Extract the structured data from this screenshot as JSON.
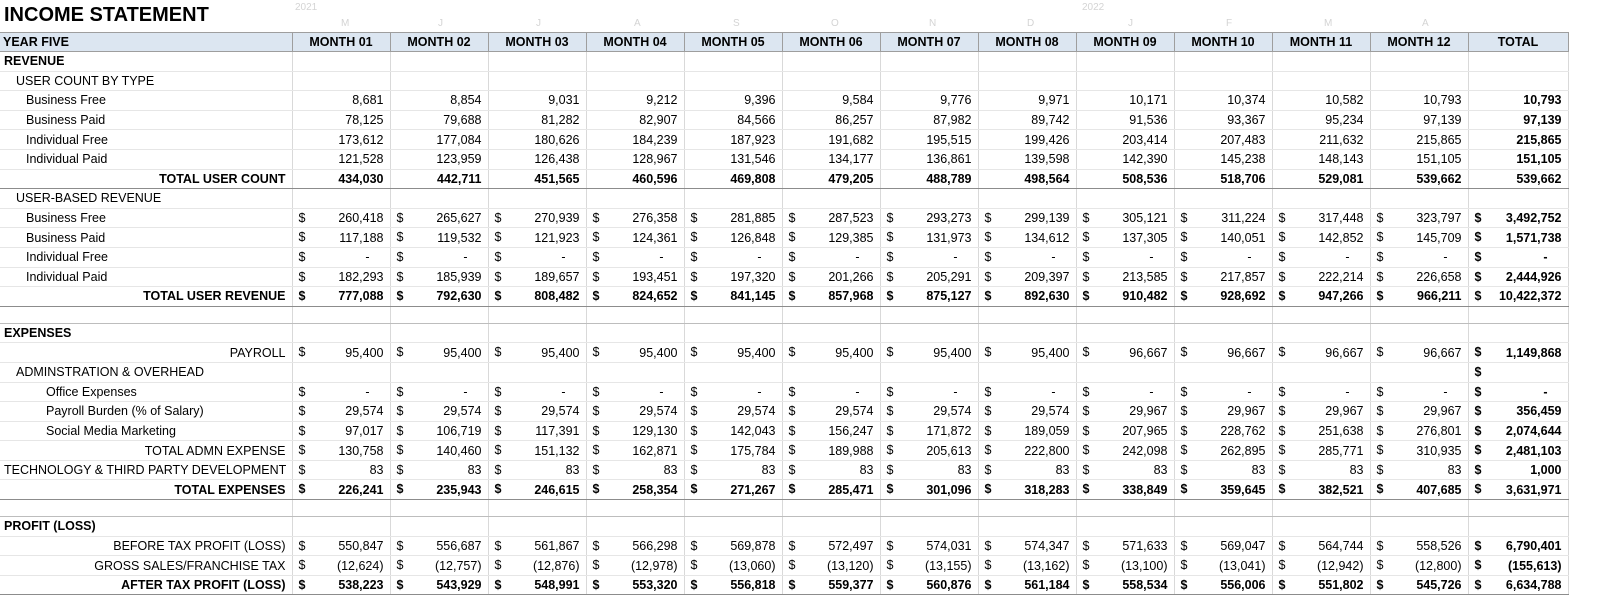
{
  "title": "INCOME STATEMENT",
  "ghost": {
    "y1": "2021",
    "y2": "2022",
    "months": [
      "M",
      "J",
      "J",
      "A",
      "S",
      "O",
      "N",
      "D",
      "J",
      "F",
      "M",
      "A"
    ]
  },
  "header": {
    "label": "YEAR FIVE",
    "months": [
      "MONTH 01",
      "MONTH 02",
      "MONTH 03",
      "MONTH 04",
      "MONTH 05",
      "MONTH 06",
      "MONTH 07",
      "MONTH 08",
      "MONTH 09",
      "MONTH 10",
      "MONTH 11",
      "MONTH 12"
    ],
    "total": "TOTAL"
  },
  "rows": [
    {
      "label": "REVENUE",
      "style": "sec"
    },
    {
      "label": "USER COUNT BY TYPE",
      "style": "i1"
    },
    {
      "label": "Business Free",
      "style": "i2",
      "values": [
        "8,681",
        "8,854",
        "9,031",
        "9,212",
        "9,396",
        "9,584",
        "9,776",
        "9,971",
        "10,171",
        "10,374",
        "10,582",
        "10,793"
      ],
      "total": "10,793"
    },
    {
      "label": "Business Paid",
      "style": "i2",
      "values": [
        "78,125",
        "79,688",
        "81,282",
        "82,907",
        "84,566",
        "86,257",
        "87,982",
        "89,742",
        "91,536",
        "93,367",
        "95,234",
        "97,139"
      ],
      "total": "97,139"
    },
    {
      "label": "Individual Free",
      "style": "i2",
      "values": [
        "173,612",
        "177,084",
        "180,626",
        "184,239",
        "187,923",
        "191,682",
        "195,515",
        "199,426",
        "203,414",
        "207,483",
        "211,632",
        "215,865"
      ],
      "total": "215,865"
    },
    {
      "label": "Individual Paid",
      "style": "i2",
      "values": [
        "121,528",
        "123,959",
        "126,438",
        "128,967",
        "131,546",
        "134,177",
        "136,861",
        "139,598",
        "142,390",
        "145,238",
        "148,143",
        "151,105"
      ],
      "total": "151,105"
    },
    {
      "label": "TOTAL USER COUNT",
      "style": "tot",
      "values": [
        "434,030",
        "442,711",
        "451,565",
        "460,596",
        "469,808",
        "479,205",
        "488,789",
        "498,564",
        "508,536",
        "518,706",
        "529,081",
        "539,662"
      ],
      "total": "539,662"
    },
    {
      "label": "USER-BASED REVENUE",
      "style": "i1"
    },
    {
      "label": "Business Free",
      "style": "i2",
      "cur": true,
      "values": [
        "260,418",
        "265,627",
        "270,939",
        "276,358",
        "281,885",
        "287,523",
        "293,273",
        "299,139",
        "305,121",
        "311,224",
        "317,448",
        "323,797"
      ],
      "total": "3,492,752"
    },
    {
      "label": "Business Paid",
      "style": "i2",
      "cur": true,
      "values": [
        "117,188",
        "119,532",
        "121,923",
        "124,361",
        "126,848",
        "129,385",
        "131,973",
        "134,612",
        "137,305",
        "140,051",
        "142,852",
        "145,709"
      ],
      "total": "1,571,738"
    },
    {
      "label": "Individual Free",
      "style": "i2",
      "cur": true,
      "values": [
        "-",
        "-",
        "-",
        "-",
        "-",
        "-",
        "-",
        "-",
        "-",
        "-",
        "-",
        "-"
      ],
      "total": "-"
    },
    {
      "label": "Individual Paid",
      "style": "i2",
      "cur": true,
      "values": [
        "182,293",
        "185,939",
        "189,657",
        "193,451",
        "197,320",
        "201,266",
        "205,291",
        "209,397",
        "213,585",
        "217,857",
        "222,214",
        "226,658"
      ],
      "total": "2,444,926"
    },
    {
      "label": "TOTAL USER REVENUE",
      "style": "tot",
      "cur": true,
      "values": [
        "777,088",
        "792,630",
        "808,482",
        "824,652",
        "841,145",
        "857,968",
        "875,127",
        "892,630",
        "910,482",
        "928,692",
        "947,266",
        "966,211"
      ],
      "total": "10,422,372"
    },
    {
      "label": "",
      "style": "gap"
    },
    {
      "label": "EXPENSES",
      "style": "sec"
    },
    {
      "label": "PAYROLL",
      "style": "right",
      "cur": true,
      "values": [
        "95,400",
        "95,400",
        "95,400",
        "95,400",
        "95,400",
        "95,400",
        "95,400",
        "95,400",
        "96,667",
        "96,667",
        "96,667",
        "96,667"
      ],
      "total": "1,149,868"
    },
    {
      "label": "ADMINSTRATION & OVERHEAD",
      "style": "i1",
      "totalcur": true,
      "total": ""
    },
    {
      "label": "Office Expenses",
      "style": "i3",
      "cur": true,
      "values": [
        "-",
        "-",
        "-",
        "-",
        "-",
        "-",
        "-",
        "-",
        "-",
        "-",
        "-",
        "-"
      ],
      "total": "-"
    },
    {
      "label": "Payroll Burden (% of Salary)",
      "style": "i3",
      "cur": true,
      "values": [
        "29,574",
        "29,574",
        "29,574",
        "29,574",
        "29,574",
        "29,574",
        "29,574",
        "29,574",
        "29,967",
        "29,967",
        "29,967",
        "29,967"
      ],
      "total": "356,459"
    },
    {
      "label": "Social Media Marketing",
      "style": "i3",
      "cur": true,
      "values": [
        "97,017",
        "106,719",
        "117,391",
        "129,130",
        "142,043",
        "156,247",
        "171,872",
        "189,059",
        "207,965",
        "228,762",
        "251,638",
        "276,801"
      ],
      "total": "2,074,644"
    },
    {
      "label": "TOTAL ADMN EXPENSE",
      "style": "subtot",
      "cur": true,
      "values": [
        "130,758",
        "140,460",
        "151,132",
        "162,871",
        "175,784",
        "189,988",
        "205,613",
        "222,800",
        "242,098",
        "262,895",
        "285,771",
        "310,935"
      ],
      "total": "2,481,103"
    },
    {
      "label": "TECHNOLOGY & THIRD PARTY DEVELOPMENT",
      "style": "right",
      "cur": true,
      "values": [
        "83",
        "83",
        "83",
        "83",
        "83",
        "83",
        "83",
        "83",
        "83",
        "83",
        "83",
        "83"
      ],
      "total": "1,000"
    },
    {
      "label": "TOTAL EXPENSES",
      "style": "tot",
      "cur": true,
      "values": [
        "226,241",
        "235,943",
        "246,615",
        "258,354",
        "271,267",
        "285,471",
        "301,096",
        "318,283",
        "338,849",
        "359,645",
        "382,521",
        "407,685"
      ],
      "total": "3,631,971"
    },
    {
      "label": "",
      "style": "gap"
    },
    {
      "label": "PROFIT (LOSS)",
      "style": "sec"
    },
    {
      "label": "BEFORE TAX PROFIT (LOSS)",
      "style": "right",
      "cur": true,
      "values": [
        "550,847",
        "556,687",
        "561,867",
        "566,298",
        "569,878",
        "572,497",
        "574,031",
        "574,347",
        "571,633",
        "569,047",
        "564,744",
        "558,526"
      ],
      "total": "6,790,401"
    },
    {
      "label": "GROSS SALES/FRANCHISE TAX",
      "style": "right",
      "cur": true,
      "values": [
        "(12,624)",
        "(12,757)",
        "(12,876)",
        "(12,978)",
        "(13,060)",
        "(13,120)",
        "(13,155)",
        "(13,162)",
        "(13,100)",
        "(13,041)",
        "(12,942)",
        "(12,800)"
      ],
      "total": "(155,613)"
    },
    {
      "label": "AFTER TAX PROFIT (LOSS)",
      "style": "tot",
      "cur": true,
      "values": [
        "538,223",
        "543,929",
        "548,991",
        "553,320",
        "556,818",
        "559,377",
        "560,876",
        "561,184",
        "558,534",
        "556,006",
        "551,802",
        "545,726"
      ],
      "total": "6,634,788"
    }
  ],
  "currency_symbol": "$"
}
